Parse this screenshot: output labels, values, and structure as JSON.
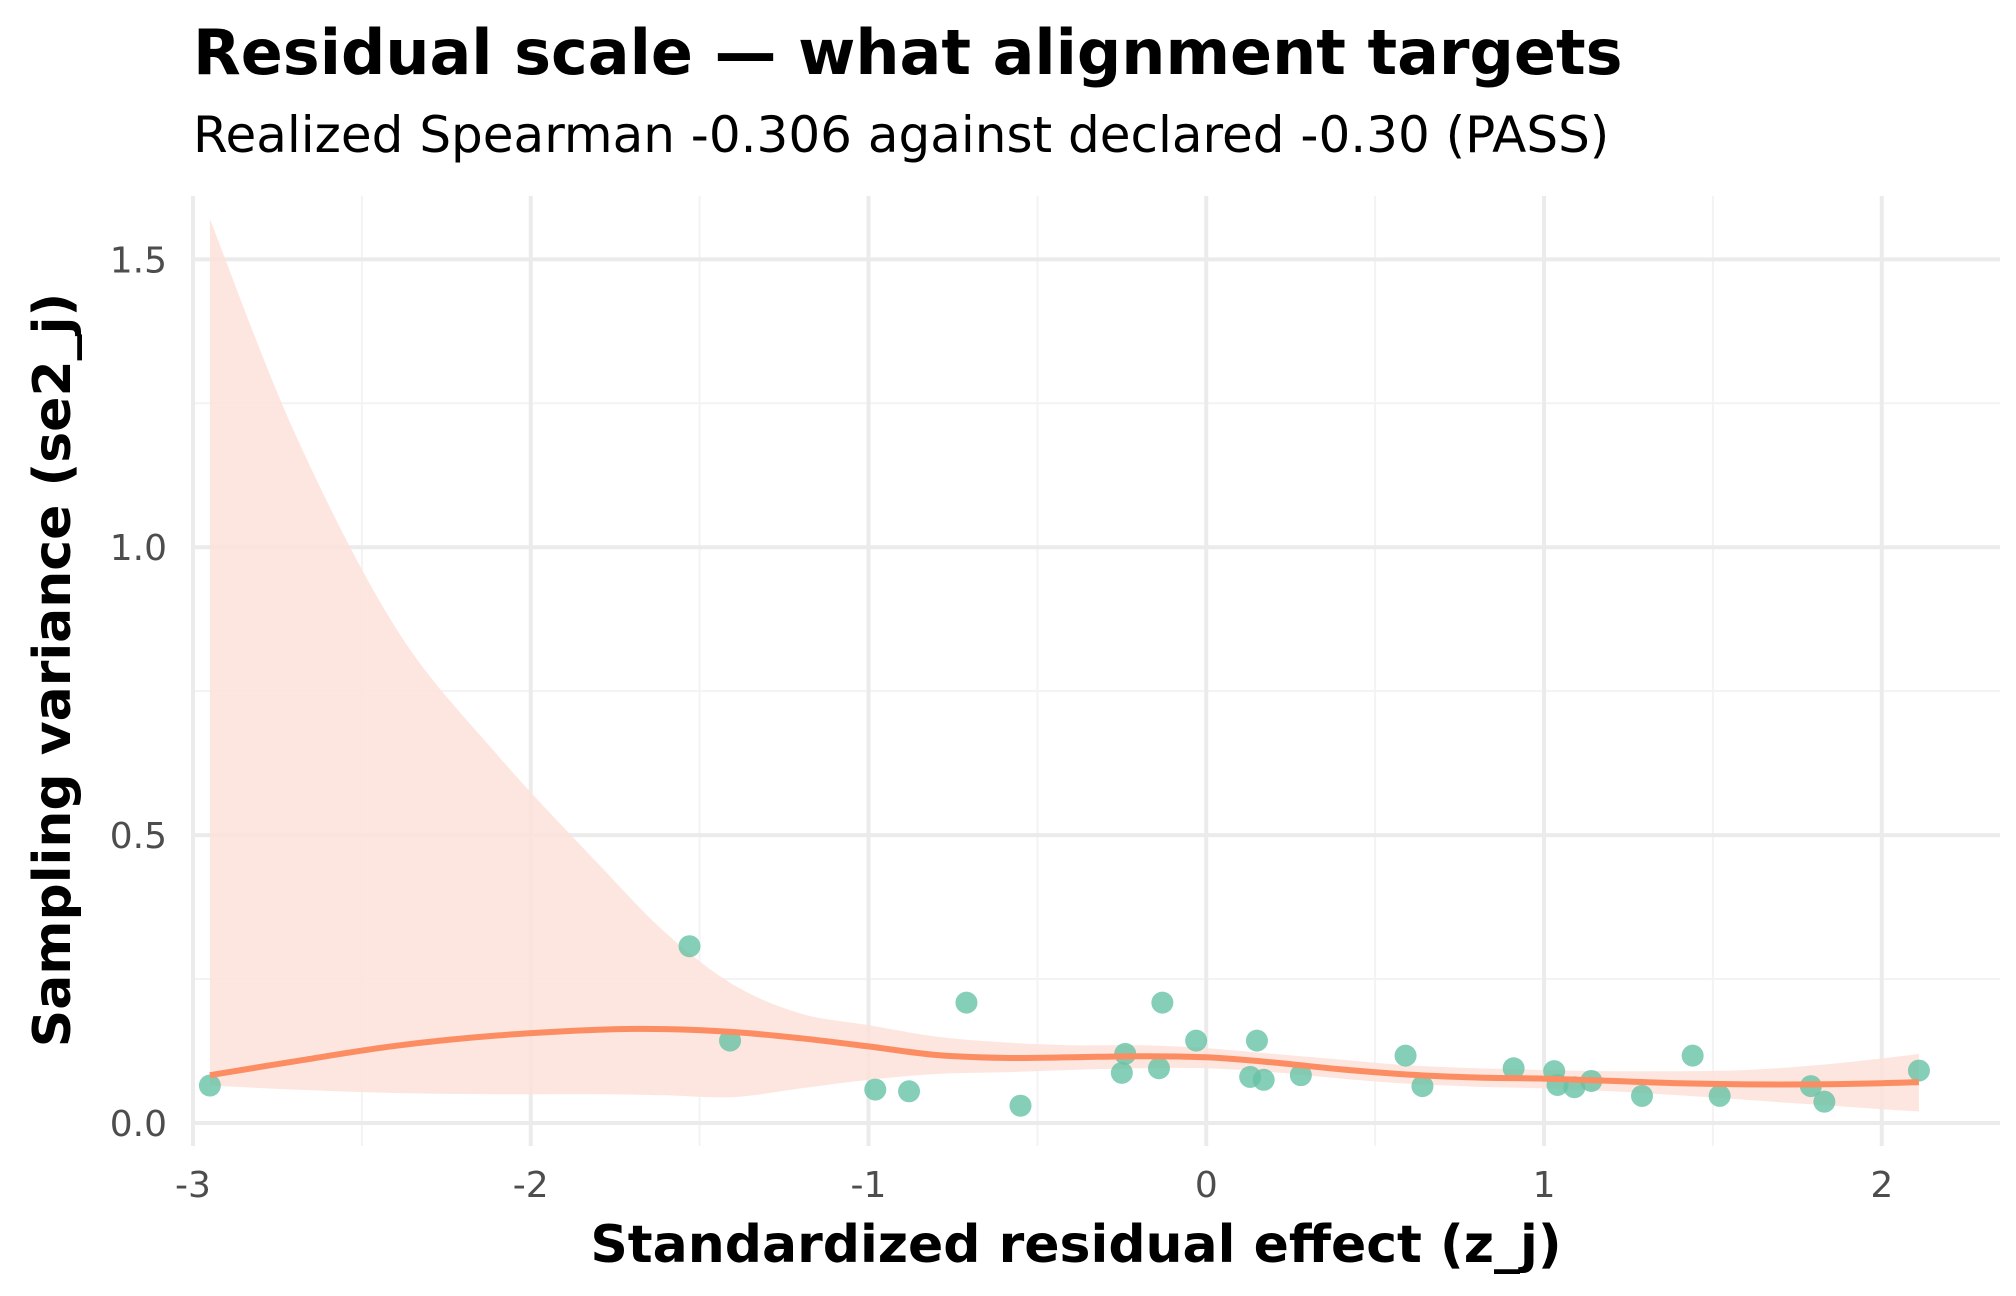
{
  "title": "Residual scale — what alignment targets",
  "subtitle": "Realized Spearman -0.306 against declared -0.30 (PASS)",
  "colors": {
    "points": "#66C2A5",
    "smooth_line": "#FC8D62",
    "ribbon": "#FDE2D9",
    "grid_major": "#EBEBEB",
    "grid_minor": "#F3F3F3",
    "tick_text": "#4D4D4D"
  },
  "chart_data": {
    "type": "scatter",
    "xlabel": "Standardized residual effect (z_j)",
    "ylabel": "Sampling variance (se2_j)",
    "xlim": [
      -3.0,
      2.35
    ],
    "ylim": [
      -0.04,
      1.61
    ],
    "xticks": [
      -3,
      -2,
      -1,
      0,
      1,
      2
    ],
    "xtick_labels": [
      "-3",
      "-2",
      "-1",
      "0",
      "1",
      "2"
    ],
    "yticks": [
      0.0,
      0.5,
      1.0,
      1.5
    ],
    "ytick_labels": [
      "0.0",
      "0.5",
      "1.0",
      "1.5"
    ],
    "grid": true,
    "points": [
      {
        "x": -2.95,
        "y": 0.065
      },
      {
        "x": -1.53,
        "y": 0.307
      },
      {
        "x": -1.41,
        "y": 0.143
      },
      {
        "x": -0.98,
        "y": 0.058
      },
      {
        "x": -0.88,
        "y": 0.055
      },
      {
        "x": -0.71,
        "y": 0.209
      },
      {
        "x": -0.55,
        "y": 0.03
      },
      {
        "x": -0.25,
        "y": 0.087
      },
      {
        "x": -0.24,
        "y": 0.12
      },
      {
        "x": -0.14,
        "y": 0.095
      },
      {
        "x": -0.13,
        "y": 0.209
      },
      {
        "x": -0.03,
        "y": 0.143
      },
      {
        "x": 0.13,
        "y": 0.08
      },
      {
        "x": 0.15,
        "y": 0.143
      },
      {
        "x": 0.17,
        "y": 0.075
      },
      {
        "x": 0.28,
        "y": 0.083
      },
      {
        "x": 0.59,
        "y": 0.117
      },
      {
        "x": 0.64,
        "y": 0.064
      },
      {
        "x": 0.91,
        "y": 0.095
      },
      {
        "x": 1.03,
        "y": 0.09
      },
      {
        "x": 1.04,
        "y": 0.066
      },
      {
        "x": 1.09,
        "y": 0.062
      },
      {
        "x": 1.14,
        "y": 0.073
      },
      {
        "x": 1.29,
        "y": 0.047
      },
      {
        "x": 1.44,
        "y": 0.117
      },
      {
        "x": 1.52,
        "y": 0.047
      },
      {
        "x": 1.79,
        "y": 0.064
      },
      {
        "x": 1.83,
        "y": 0.037
      },
      {
        "x": 2.11,
        "y": 0.091
      }
    ],
    "smooth": {
      "x": [
        -2.95,
        -2.7,
        -2.4,
        -2.1,
        -1.8,
        -1.6,
        -1.4,
        -1.2,
        -1.0,
        -0.8,
        -0.6,
        -0.4,
        -0.2,
        0.0,
        0.2,
        0.4,
        0.6,
        0.8,
        1.0,
        1.2,
        1.4,
        1.6,
        1.8,
        2.0,
        2.11
      ],
      "y": [
        0.083,
        0.107,
        0.134,
        0.152,
        0.162,
        0.163,
        0.158,
        0.147,
        0.133,
        0.118,
        0.113,
        0.114,
        0.116,
        0.114,
        0.105,
        0.093,
        0.084,
        0.079,
        0.077,
        0.073,
        0.069,
        0.067,
        0.067,
        0.069,
        0.071
      ],
      "upper": [
        1.57,
        1.2,
        0.86,
        0.64,
        0.45,
        0.33,
        0.24,
        0.19,
        0.17,
        0.15,
        0.14,
        0.135,
        0.135,
        0.13,
        0.12,
        0.11,
        0.1,
        0.095,
        0.092,
        0.09,
        0.09,
        0.092,
        0.1,
        0.112,
        0.12
      ],
      "lower": [
        0.065,
        0.058,
        0.052,
        0.05,
        0.05,
        0.048,
        0.045,
        0.06,
        0.075,
        0.085,
        0.088,
        0.092,
        0.095,
        0.095,
        0.088,
        0.077,
        0.068,
        0.063,
        0.06,
        0.055,
        0.048,
        0.04,
        0.032,
        0.024,
        0.02
      ]
    }
  }
}
